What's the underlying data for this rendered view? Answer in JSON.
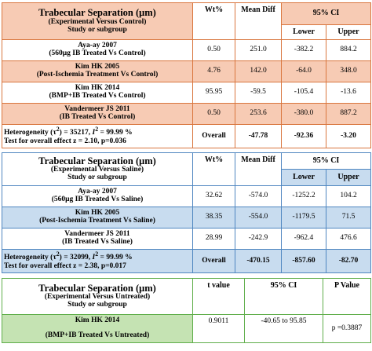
{
  "table1": {
    "title": "Trabecular Separation (μm)",
    "subtitle": "(Experimental Versus  Control)",
    "subhead": "Study or subgroup",
    "col_wt": "Wt%",
    "col_md": "Mean Diff",
    "col_ci": "95% CI",
    "col_lower": "Lower",
    "col_upper": "Upper",
    "rows": [
      {
        "name": "Aya-ay 2007",
        "detail": "(560μg IB Treated Vs Control)",
        "wt": "0.50",
        "md": "251.0",
        "lower": "-382.2",
        "upper": "884.2"
      },
      {
        "name": "Kim HK 2005",
        "detail": "(Post-Ischemia Treatment Vs Control)",
        "wt": "4.76",
        "md": "142.0",
        "lower": "-64.0",
        "upper": "348.0"
      },
      {
        "name": "Kim HK 2014",
        "detail": "(BMP+IB Treated Vs Control)",
        "wt": "95.95",
        "md": "-59.5",
        "lower": "-105.4",
        "upper": "-13.6"
      },
      {
        "name": "Vandermeer JS 2011",
        "detail": "(IB Treated Vs Control)",
        "wt": "0.50",
        "md": "253.6",
        "lower": "-380.0",
        "upper": "887.2"
      }
    ],
    "het_pre": "Heterogeneity (τ",
    "het_sup": "2",
    "het_mid": ") = 35217, ",
    "het_i": "I",
    "het_isup": "2",
    "het_post": " = 99.99 %",
    "overall_test": "Test for overall effect z = 2.10, p=0.036",
    "overall_label": "Overall",
    "overall_md": "-47.78",
    "overall_lower": "-92.36",
    "overall_upper": "-3.20"
  },
  "table2": {
    "title": "Trabecular Separation (μm)",
    "subtitle": "(Experimental Versus  Saline)",
    "subhead": "Study or subgroup",
    "col_wt": "Wt%",
    "col_md": "Mean Diff",
    "col_ci": "95% CI",
    "col_lower": "Lower",
    "col_upper": "Upper",
    "rows": [
      {
        "name": "Aya-ay 2007",
        "detail": "(560μg IB Treated Vs Saline)",
        "wt": "32.62",
        "md": "-574.0",
        "lower": "-1252.2",
        "upper": "104.2"
      },
      {
        "name": "Kim HK 2005",
        "detail": "(Post-Ischemia Treatment Vs Saline)",
        "wt": "38.35",
        "md": "-554.0",
        "lower": "-1179.5",
        "upper": "71.5"
      },
      {
        "name": "Vandermeer JS 2011",
        "detail": "(IB Treated Vs Saline)",
        "wt": "28.99",
        "md": "-242.9",
        "lower": "-962.4",
        "upper": "476.6"
      }
    ],
    "het_pre": "Heterogeneity (τ",
    "het_sup": "2",
    "het_mid": ") = 32099, ",
    "het_i": "I",
    "het_isup": "2",
    "het_post": " = 99.99 %",
    "overall_test": "Test for overall effect z = 2.38, p=0.017",
    "overall_label": "Overall",
    "overall_md": "-470.15",
    "overall_lower": "-857.60",
    "overall_upper": "-82.70"
  },
  "table3": {
    "title": "Trabecular Separation (μm)",
    "subtitle": "(Experimental Versus  Untreated)",
    "subhead": "Study or subgroup",
    "col_t": "t value",
    "col_ci": "95% CI",
    "col_p": "P Value",
    "row": {
      "name": "Kim HK 2014",
      "detail": "(BMP+IB Treated Vs Untreated)",
      "t": "0.9011",
      "ci": "-40.65 to 95.85",
      "p": "p =0.3887"
    }
  }
}
